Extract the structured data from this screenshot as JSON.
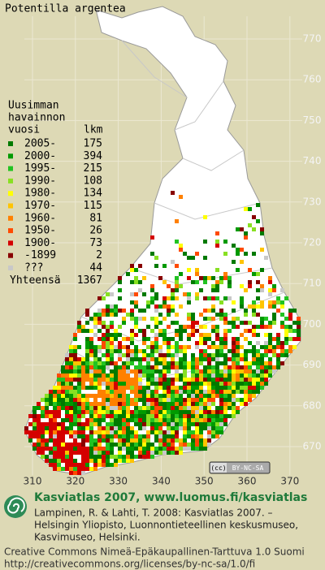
{
  "header": {
    "title": "Potentilla argentea"
  },
  "legend": {
    "heading": [
      "Uusimman",
      "havainnon",
      "vuosi"
    ],
    "count_heading": "lkm",
    "entries": [
      {
        "label": "2005-",
        "count": 175,
        "color": "#007a00"
      },
      {
        "label": "2000-",
        "count": 394,
        "color": "#009a00"
      },
      {
        "label": "1995-",
        "count": 215,
        "color": "#22c322"
      },
      {
        "label": "1990-",
        "count": 108,
        "color": "#88e022"
      },
      {
        "label": "1980-",
        "count": 134,
        "color": "#ffff00"
      },
      {
        "label": "1970-",
        "count": 115,
        "color": "#ffc400"
      },
      {
        "label": "1960-",
        "count": 81,
        "color": "#ff8000"
      },
      {
        "label": "1950-",
        "count": 26,
        "color": "#ff4a00"
      },
      {
        "label": "1900-",
        "count": 73,
        "color": "#d40000"
      },
      {
        "label": "-1899",
        "count": 2,
        "color": "#880000"
      },
      {
        "label": "???",
        "count": 44,
        "color": "#c8c8c8"
      }
    ],
    "total_label": "Yhteensä",
    "total": 1367
  },
  "map": {
    "yticks": [
      770,
      760,
      750,
      740,
      730,
      720,
      710,
      700,
      690,
      680,
      670
    ],
    "xticks": [
      310,
      320,
      330,
      340,
      350,
      360,
      370
    ]
  },
  "badge": "BY-NC-SA",
  "footer": {
    "site": "Kasviatlas 2007, www.luomus.fi/kasviatlas",
    "citation": [
      "Lampinen, R. & Lahti, T. 2008: Kasviatlas 2007. –",
      "Helsingin Yliopisto, Luonnontieteellinen keskusmuseo,",
      "Kasvimuseo, Helsinki."
    ],
    "license": "Creative Commons Nimeä-Epäkaupallinen-Tarttuva 1.0 Suomi",
    "url": "http://creativecommons.org/licenses/by-nc-sa/1.0/fi"
  }
}
